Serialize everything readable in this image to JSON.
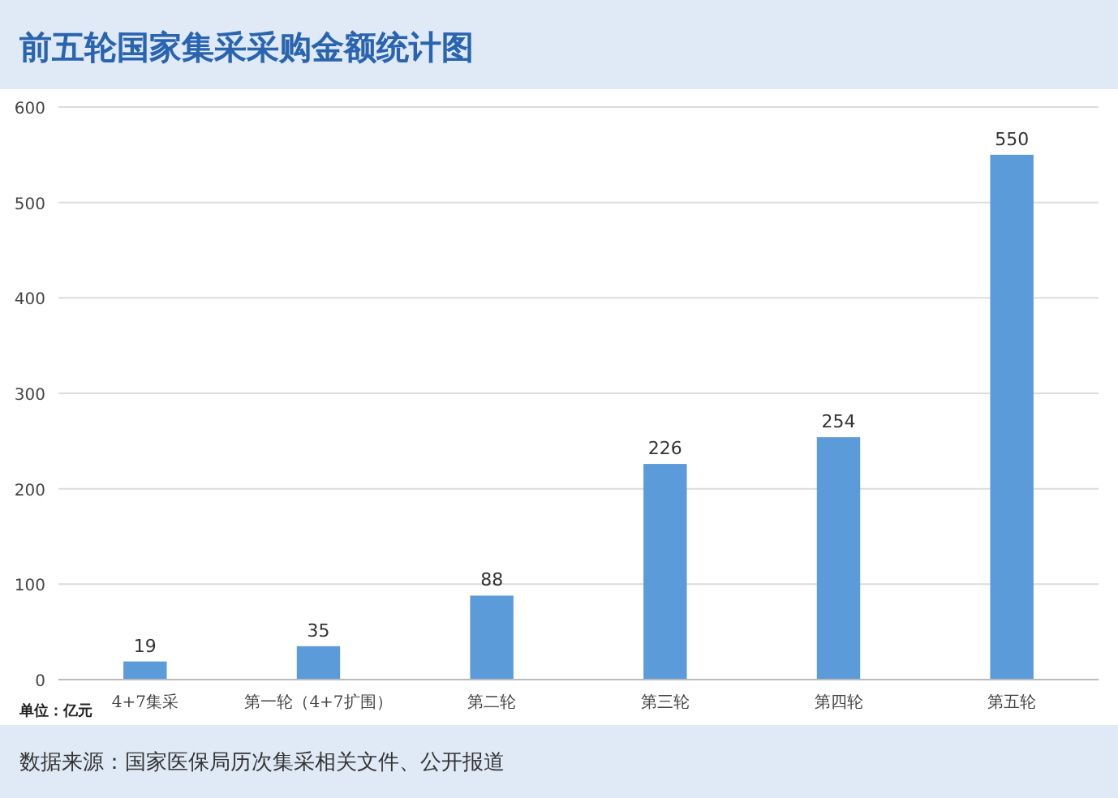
{
  "chart_data": {
    "type": "bar",
    "title": "前五轮国家集采采购金额统计图",
    "categories": [
      "4+7集采",
      "第一轮（4+7扩围）",
      "第二轮",
      "第三轮",
      "第四轮",
      "第五轮"
    ],
    "values": [
      19,
      35,
      88,
      226,
      254,
      550
    ],
    "color": "#5b9bd9",
    "ylim": [
      0,
      600
    ],
    "yticks": [
      0,
      100,
      200,
      300,
      400,
      500,
      600
    ],
    "grid": "y",
    "data_labels": true,
    "annotations": [
      "单位：亿元",
      "数据来源：国家医保局历次集采相关文件、公开报道"
    ]
  }
}
